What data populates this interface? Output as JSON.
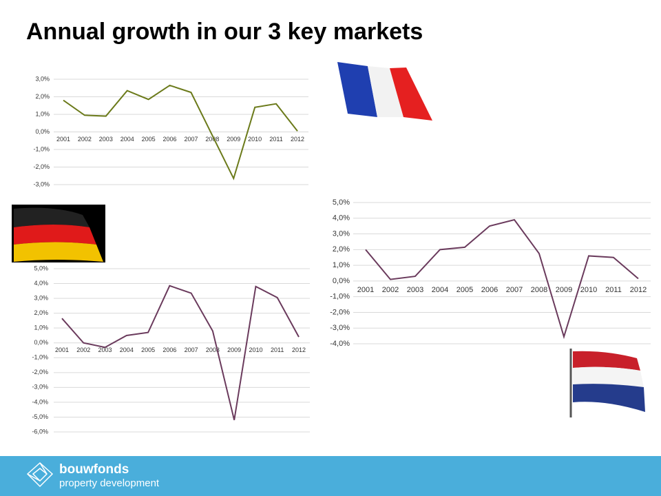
{
  "title": "Annual growth in our 3 key markets",
  "chart_data": [
    {
      "type": "line",
      "color": "#6b7a1a",
      "categories": [
        "2001",
        "2002",
        "2003",
        "2004",
        "2005",
        "2006",
        "2007",
        "2008",
        "2009",
        "2010",
        "2011",
        "2012"
      ],
      "values": [
        1.8,
        0.95,
        0.9,
        2.35,
        1.85,
        2.65,
        2.25,
        -0.2,
        -2.65,
        1.4,
        1.6,
        0.05
      ],
      "ylim": [
        -3,
        3
      ],
      "yticks": [
        {
          "value": 3,
          "label": "3,0%"
        },
        {
          "value": 2,
          "label": "2,0%"
        },
        {
          "value": 1,
          "label": "1,0%"
        },
        {
          "value": 0,
          "label": "0,0%"
        },
        {
          "value": -1,
          "label": "-1,0%"
        },
        {
          "value": -2,
          "label": "-2,0%"
        },
        {
          "value": -3,
          "label": "-3,0%"
        }
      ],
      "grid": true
    },
    {
      "type": "line",
      "color": "#6a3a5c",
      "categories": [
        "2001",
        "2002",
        "2003",
        "2004",
        "2005",
        "2006",
        "2007",
        "2008",
        "2009",
        "2010",
        "2011",
        "2012"
      ],
      "values": [
        1.65,
        0,
        -0.3,
        0.5,
        0.7,
        3.85,
        3.35,
        0.8,
        -5.2,
        3.8,
        3.05,
        0.4
      ],
      "ylim": [
        -6,
        5
      ],
      "yticks": [
        {
          "value": 5,
          "label": "5,0%"
        },
        {
          "value": 4,
          "label": "4,0%"
        },
        {
          "value": 3,
          "label": "3,0%"
        },
        {
          "value": 2,
          "label": "2,0%"
        },
        {
          "value": 1,
          "label": "1,0%"
        },
        {
          "value": 0,
          "label": "0,0%"
        },
        {
          "value": -1,
          "label": "-1,0%"
        },
        {
          "value": -2,
          "label": "-2,0%"
        },
        {
          "value": -3,
          "label": "-3,0%"
        },
        {
          "value": -4,
          "label": "-4,0%"
        },
        {
          "value": -5,
          "label": "-5,0%"
        },
        {
          "value": -6,
          "label": "-6,0%"
        }
      ],
      "grid": true
    },
    {
      "type": "line",
      "color": "#6a3a5c",
      "categories": [
        "2001",
        "2002",
        "2003",
        "2004",
        "2005",
        "2006",
        "2007",
        "2008",
        "2009",
        "2010",
        "2011",
        "2012"
      ],
      "values": [
        2.0,
        0.1,
        0.3,
        2.0,
        2.15,
        3.5,
        3.9,
        1.75,
        -3.55,
        1.6,
        1.5,
        0.15
      ],
      "ylim": [
        -4,
        5
      ],
      "yticks": [
        {
          "value": 5,
          "label": "5,0%"
        },
        {
          "value": 4,
          "label": "4,0%"
        },
        {
          "value": 3,
          "label": "3,0%"
        },
        {
          "value": 2,
          "label": "2,0%"
        },
        {
          "value": 1,
          "label": "1,0%"
        },
        {
          "value": 0,
          "label": "0,0%"
        },
        {
          "value": -1,
          "label": "-1,0%"
        },
        {
          "value": -2,
          "label": "-2,0%"
        },
        {
          "value": -3,
          "label": "-3,0%"
        },
        {
          "value": -4,
          "label": "-4,0%"
        }
      ],
      "grid": true
    }
  ],
  "footer": {
    "brand": "bouwfonds",
    "tagline": "property development"
  }
}
